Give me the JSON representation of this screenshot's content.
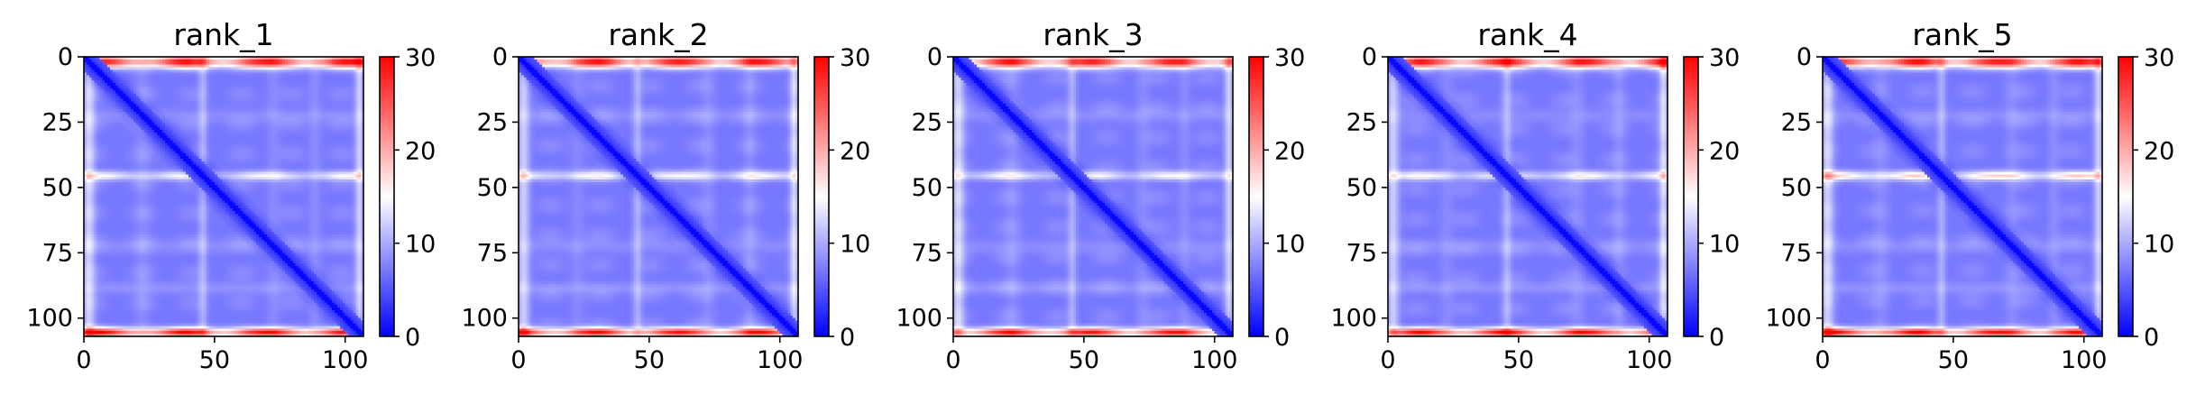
{
  "chart_data": [
    {
      "type": "heatmap",
      "title": "rank_1",
      "matrix_size": 107,
      "xlim": [
        0,
        107
      ],
      "ylim": [
        107,
        0
      ],
      "x_ticks": [
        0,
        50,
        100
      ],
      "x_tick_labels": [
        "0",
        "50",
        "100"
      ],
      "y_ticks": [
        0,
        25,
        50,
        75,
        100
      ],
      "y_tick_labels": [
        "0",
        "25",
        "50",
        "75",
        "100"
      ],
      "colorbar": {
        "min": 0,
        "max": 30,
        "ticks": [
          0,
          10,
          20,
          30
        ],
        "tick_labels": [
          "0",
          "10",
          "20",
          "30"
        ],
        "colormap": "bwr"
      },
      "high_value_bands": [
        [
          0,
          3
        ],
        [
          44,
          46
        ],
        [
          104,
          106
        ]
      ],
      "band_intensity": 0.55
    },
    {
      "type": "heatmap",
      "title": "rank_2",
      "matrix_size": 107,
      "xlim": [
        0,
        107
      ],
      "ylim": [
        107,
        0
      ],
      "x_ticks": [
        0,
        50,
        100
      ],
      "x_tick_labels": [
        "0",
        "50",
        "100"
      ],
      "y_ticks": [
        0,
        25,
        50,
        75,
        100
      ],
      "y_tick_labels": [
        "0",
        "25",
        "50",
        "75",
        "100"
      ],
      "colorbar": {
        "min": 0,
        "max": 30,
        "ticks": [
          0,
          10,
          20,
          30
        ],
        "tick_labels": [
          "0",
          "10",
          "20",
          "30"
        ],
        "colormap": "bwr"
      },
      "high_value_bands": [
        [
          0,
          3
        ],
        [
          44,
          46
        ],
        [
          104,
          106
        ]
      ],
      "band_intensity": 0.55
    },
    {
      "type": "heatmap",
      "title": "rank_3",
      "matrix_size": 107,
      "xlim": [
        0,
        107
      ],
      "ylim": [
        107,
        0
      ],
      "x_ticks": [
        0,
        50,
        100
      ],
      "x_tick_labels": [
        "0",
        "50",
        "100"
      ],
      "y_ticks": [
        0,
        25,
        50,
        75,
        100
      ],
      "y_tick_labels": [
        "0",
        "25",
        "50",
        "75",
        "100"
      ],
      "colorbar": {
        "min": 0,
        "max": 30,
        "ticks": [
          0,
          10,
          20,
          30
        ],
        "tick_labels": [
          "0",
          "10",
          "20",
          "30"
        ],
        "colormap": "bwr"
      },
      "high_value_bands": [
        [
          0,
          3
        ],
        [
          44,
          46
        ],
        [
          104,
          106
        ]
      ],
      "band_intensity": 0.55
    },
    {
      "type": "heatmap",
      "title": "rank_4",
      "matrix_size": 107,
      "xlim": [
        0,
        107
      ],
      "ylim": [
        107,
        0
      ],
      "x_ticks": [
        0,
        50,
        100
      ],
      "x_tick_labels": [
        "0",
        "50",
        "100"
      ],
      "y_ticks": [
        0,
        25,
        50,
        75,
        100
      ],
      "y_tick_labels": [
        "0",
        "25",
        "50",
        "75",
        "100"
      ],
      "colorbar": {
        "min": 0,
        "max": 30,
        "ticks": [
          0,
          10,
          20,
          30
        ],
        "tick_labels": [
          "0",
          "10",
          "20",
          "30"
        ],
        "colormap": "bwr"
      },
      "high_value_bands": [
        [
          0,
          3
        ],
        [
          44,
          46
        ],
        [
          104,
          106
        ]
      ],
      "band_intensity": 0.6
    },
    {
      "type": "heatmap",
      "title": "rank_5",
      "matrix_size": 107,
      "xlim": [
        0,
        107
      ],
      "ylim": [
        107,
        0
      ],
      "x_ticks": [
        0,
        50,
        100
      ],
      "x_tick_labels": [
        "0",
        "50",
        "100"
      ],
      "y_ticks": [
        0,
        25,
        50,
        75,
        100
      ],
      "y_tick_labels": [
        "0",
        "25",
        "50",
        "75",
        "100"
      ],
      "colorbar": {
        "min": 0,
        "max": 30,
        "ticks": [
          0,
          10,
          20,
          30
        ],
        "tick_labels": [
          "0",
          "10",
          "20",
          "30"
        ],
        "colormap": "bwr"
      },
      "high_value_bands": [
        [
          0,
          3
        ],
        [
          44,
          46
        ],
        [
          104,
          106
        ]
      ],
      "band_intensity": 0.75
    }
  ],
  "colors": {
    "low": "#0000ff",
    "mid": "#ffffff",
    "high": "#ff0000",
    "axis": "#000000"
  }
}
